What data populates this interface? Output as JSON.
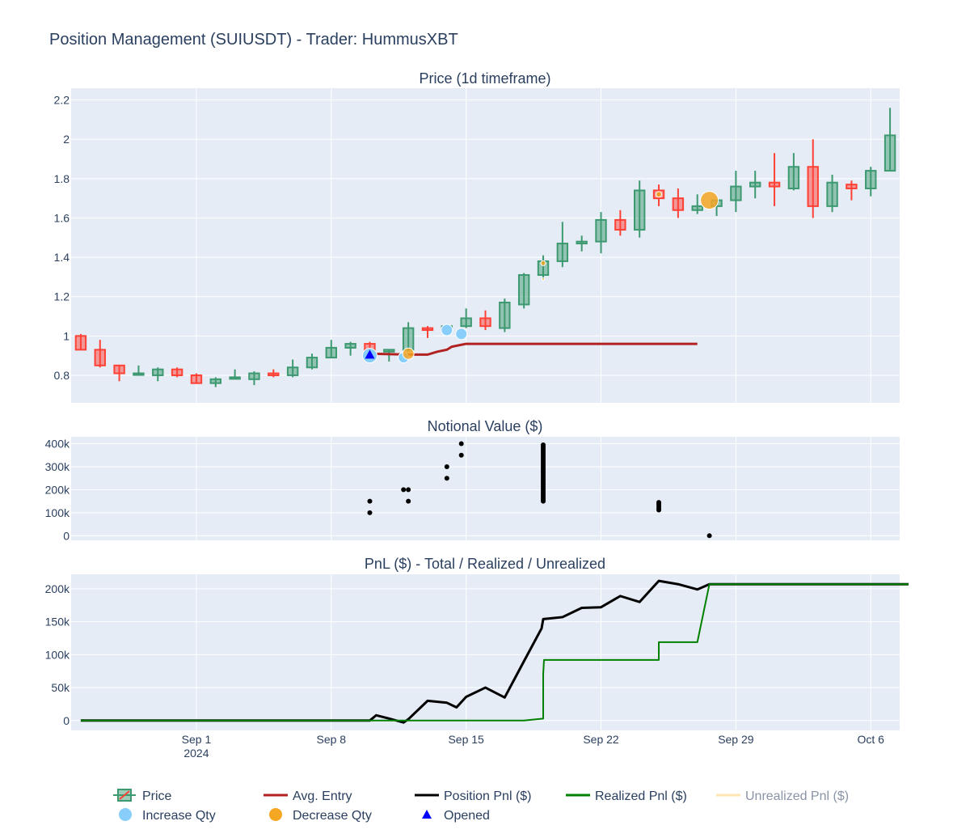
{
  "title": "Position Management (SUIUSDT) - Trader: HummusXBT",
  "colors": {
    "plot_bg": "#e5ecf6",
    "grid": "#ffffff",
    "text": "#2a3f5f",
    "up": "#3d9970",
    "up_fill": "rgba(61,153,112,0.5)",
    "down": "#ff4136",
    "down_fill": "rgba(255,65,54,0.5)",
    "avg_entry": "#b22222",
    "increase": "#87cefa",
    "decrease": "#f5a623",
    "opened": "#0000ff",
    "position_pnl": "#000000",
    "realized_pnl": "#008000",
    "unrealized_pnl": "#ffd580"
  },
  "x_axis": {
    "start": "2024-08-26",
    "end": "2024-10-07",
    "ticks": [
      {
        "date": "2024-09-01",
        "label": "Sep 1",
        "sublabel": "2024"
      },
      {
        "date": "2024-09-08",
        "label": "Sep 8",
        "sublabel": ""
      },
      {
        "date": "2024-09-15",
        "label": "Sep 15",
        "sublabel": ""
      },
      {
        "date": "2024-09-22",
        "label": "Sep 22",
        "sublabel": ""
      },
      {
        "date": "2024-09-29",
        "label": "Sep 29",
        "sublabel": ""
      },
      {
        "date": "2024-10-06",
        "label": "Oct 6",
        "sublabel": ""
      }
    ]
  },
  "chart_data": [
    {
      "type": "candlestick",
      "title": "Price (1d timeframe)",
      "ylim": [
        0.66,
        2.26
      ],
      "yticks": [
        {
          "v": 0.8,
          "label": "0.8"
        },
        {
          "v": 1.0,
          "label": "1"
        },
        {
          "v": 1.2,
          "label": "1.2"
        },
        {
          "v": 1.4,
          "label": "1.4"
        },
        {
          "v": 1.6,
          "label": "1.6"
        },
        {
          "v": 1.8,
          "label": "1.8"
        },
        {
          "v": 2.0,
          "label": "2"
        },
        {
          "v": 2.2,
          "label": "2.2"
        }
      ],
      "candles": [
        {
          "d": "2024-08-26",
          "o": 1.0,
          "h": 1.01,
          "l": 0.93,
          "c": 0.93
        },
        {
          "d": "2024-08-27",
          "o": 0.93,
          "h": 0.98,
          "l": 0.84,
          "c": 0.85
        },
        {
          "d": "2024-08-28",
          "o": 0.85,
          "h": 0.85,
          "l": 0.77,
          "c": 0.81
        },
        {
          "d": "2024-08-29",
          "o": 0.81,
          "h": 0.85,
          "l": 0.8,
          "c": 0.81
        },
        {
          "d": "2024-08-30",
          "o": 0.8,
          "h": 0.84,
          "l": 0.77,
          "c": 0.83
        },
        {
          "d": "2024-08-31",
          "o": 0.83,
          "h": 0.84,
          "l": 0.79,
          "c": 0.8
        },
        {
          "d": "2024-09-01",
          "o": 0.8,
          "h": 0.81,
          "l": 0.76,
          "c": 0.76
        },
        {
          "d": "2024-09-02",
          "o": 0.76,
          "h": 0.79,
          "l": 0.74,
          "c": 0.78
        },
        {
          "d": "2024-09-03",
          "o": 0.79,
          "h": 0.83,
          "l": 0.78,
          "c": 0.79
        },
        {
          "d": "2024-09-04",
          "o": 0.78,
          "h": 0.82,
          "l": 0.75,
          "c": 0.81
        },
        {
          "d": "2024-09-05",
          "o": 0.81,
          "h": 0.83,
          "l": 0.79,
          "c": 0.8
        },
        {
          "d": "2024-09-06",
          "o": 0.8,
          "h": 0.88,
          "l": 0.79,
          "c": 0.84
        },
        {
          "d": "2024-09-07",
          "o": 0.84,
          "h": 0.91,
          "l": 0.83,
          "c": 0.89
        },
        {
          "d": "2024-09-08",
          "o": 0.89,
          "h": 0.98,
          "l": 0.89,
          "c": 0.94
        },
        {
          "d": "2024-09-09",
          "o": 0.94,
          "h": 0.97,
          "l": 0.9,
          "c": 0.96
        },
        {
          "d": "2024-09-10",
          "o": 0.96,
          "h": 0.97,
          "l": 0.91,
          "c": 0.92
        },
        {
          "d": "2024-09-11",
          "o": 0.92,
          "h": 0.93,
          "l": 0.87,
          "c": 0.93
        },
        {
          "d": "2024-09-12",
          "o": 0.93,
          "h": 1.07,
          "l": 0.92,
          "c": 1.04
        },
        {
          "d": "2024-09-13",
          "o": 1.04,
          "h": 1.05,
          "l": 0.99,
          "c": 1.03
        },
        {
          "d": "2024-09-14",
          "o": 1.03,
          "h": 1.06,
          "l": 1.02,
          "c": 1.05
        },
        {
          "d": "2024-09-15",
          "o": 1.05,
          "h": 1.14,
          "l": 1.04,
          "c": 1.09
        },
        {
          "d": "2024-09-16",
          "o": 1.09,
          "h": 1.13,
          "l": 1.03,
          "c": 1.05
        },
        {
          "d": "2024-09-17",
          "o": 1.04,
          "h": 1.19,
          "l": 1.02,
          "c": 1.17
        },
        {
          "d": "2024-09-18",
          "o": 1.16,
          "h": 1.32,
          "l": 1.14,
          "c": 1.31
        },
        {
          "d": "2024-09-19",
          "o": 1.31,
          "h": 1.41,
          "l": 1.29,
          "c": 1.38
        },
        {
          "d": "2024-09-20",
          "o": 1.38,
          "h": 1.58,
          "l": 1.35,
          "c": 1.47
        },
        {
          "d": "2024-09-21",
          "o": 1.47,
          "h": 1.51,
          "l": 1.43,
          "c": 1.48
        },
        {
          "d": "2024-09-22",
          "o": 1.48,
          "h": 1.63,
          "l": 1.42,
          "c": 1.59
        },
        {
          "d": "2024-09-23",
          "o": 1.59,
          "h": 1.64,
          "l": 1.51,
          "c": 1.54
        },
        {
          "d": "2024-09-24",
          "o": 1.54,
          "h": 1.79,
          "l": 1.5,
          "c": 1.74
        },
        {
          "d": "2024-09-25",
          "o": 1.74,
          "h": 1.77,
          "l": 1.66,
          "c": 1.7
        },
        {
          "d": "2024-09-26",
          "o": 1.7,
          "h": 1.75,
          "l": 1.6,
          "c": 1.64
        },
        {
          "d": "2024-09-27",
          "o": 1.64,
          "h": 1.72,
          "l": 1.62,
          "c": 1.66
        },
        {
          "d": "2024-09-28",
          "o": 1.66,
          "h": 1.69,
          "l": 1.61,
          "c": 1.69
        },
        {
          "d": "2024-09-29",
          "o": 1.69,
          "h": 1.84,
          "l": 1.63,
          "c": 1.76
        },
        {
          "d": "2024-09-30",
          "o": 1.76,
          "h": 1.84,
          "l": 1.7,
          "c": 1.78
        },
        {
          "d": "2024-10-01",
          "o": 1.78,
          "h": 1.93,
          "l": 1.66,
          "c": 1.76
        },
        {
          "d": "2024-10-02",
          "o": 1.75,
          "h": 1.93,
          "l": 1.74,
          "c": 1.86
        },
        {
          "d": "2024-10-03",
          "o": 1.86,
          "h": 2.0,
          "l": 1.6,
          "c": 1.66
        },
        {
          "d": "2024-10-04",
          "o": 1.66,
          "h": 1.82,
          "l": 1.63,
          "c": 1.78
        },
        {
          "d": "2024-10-05",
          "o": 1.77,
          "h": 1.79,
          "l": 1.69,
          "c": 1.75
        },
        {
          "d": "2024-10-06",
          "o": 1.75,
          "h": 1.86,
          "l": 1.71,
          "c": 1.84
        },
        {
          "d": "2024-10-07",
          "o": 1.84,
          "h": 2.16,
          "l": 1.84,
          "c": 2.02
        }
      ],
      "avg_entry": [
        {
          "x": "2024-09-10 00:00",
          "y": 0.91
        },
        {
          "x": "2024-09-12 00:00",
          "y": 0.905
        },
        {
          "x": "2024-09-13 00:00",
          "y": 0.905
        },
        {
          "x": "2024-09-13 12:00",
          "y": 0.92
        },
        {
          "x": "2024-09-14 00:00",
          "y": 0.93
        },
        {
          "x": "2024-09-14 06:00",
          "y": 0.945
        },
        {
          "x": "2024-09-14 18:00",
          "y": 0.955
        },
        {
          "x": "2024-09-15 00:00",
          "y": 0.96
        },
        {
          "x": "2024-09-27 00:00",
          "y": 0.96
        }
      ],
      "increase_qty": [
        {
          "x": "2024-09-10 00:00",
          "y": 0.9,
          "size": 18
        },
        {
          "x": "2024-09-11 18:00",
          "y": 0.89,
          "size": 13
        },
        {
          "x": "2024-09-14 00:00",
          "y": 1.03,
          "size": 14
        },
        {
          "x": "2024-09-14 18:00",
          "y": 1.01,
          "size": 14
        }
      ],
      "decrease_qty": [
        {
          "x": "2024-09-12 00:00",
          "y": 0.91,
          "size": 14
        },
        {
          "x": "2024-09-19 00:00",
          "y": 1.37,
          "size": 6
        },
        {
          "x": "2024-09-19 00:00",
          "y": 1.29,
          "size": 3
        },
        {
          "x": "2024-09-25 00:00",
          "y": 1.72,
          "size": 7
        },
        {
          "x": "2024-09-27 15:00",
          "y": 1.69,
          "size": 22
        }
      ],
      "opened": [
        {
          "x": "2024-09-10 00:00",
          "y": 0.905
        }
      ]
    },
    {
      "type": "scatter",
      "title": "Notional Value ($)",
      "ylim": [
        -20000,
        430000
      ],
      "yticks": [
        {
          "v": 0,
          "label": "0"
        },
        {
          "v": 100000,
          "label": "100k"
        },
        {
          "v": 200000,
          "label": "200k"
        },
        {
          "v": 300000,
          "label": "300k"
        },
        {
          "v": 400000,
          "label": "400k"
        }
      ],
      "points": [
        {
          "x": "2024-09-10 00:00",
          "y": 100000
        },
        {
          "x": "2024-09-10 00:00",
          "y": 150000
        },
        {
          "x": "2024-09-11 18:00",
          "y": 200000
        },
        {
          "x": "2024-09-12 00:00",
          "y": 150000
        },
        {
          "x": "2024-09-12 00:00",
          "y": 200000
        },
        {
          "x": "2024-09-14 00:00",
          "y": 250000
        },
        {
          "x": "2024-09-14 00:00",
          "y": 300000
        },
        {
          "x": "2024-09-14 18:00",
          "y": 350000
        },
        {
          "x": "2024-09-14 18:00",
          "y": 400000
        },
        {
          "x": "2024-09-27 15:00",
          "y": 0
        }
      ],
      "clusters": [
        {
          "x": "2024-09-19 00:00",
          "from": 150000,
          "to": 395000
        },
        {
          "x": "2024-09-25 00:00",
          "from": 112000,
          "to": 145000
        }
      ]
    },
    {
      "type": "line",
      "title": "PnL ($) - Total / Realized / Unrealized",
      "ylim": [
        -15000,
        222000
      ],
      "yticks": [
        {
          "v": 0,
          "label": "0"
        },
        {
          "v": 50000,
          "label": "50k"
        },
        {
          "v": 100000,
          "label": "100k"
        },
        {
          "v": 150000,
          "label": "150k"
        },
        {
          "v": 200000,
          "label": "200k"
        }
      ],
      "series": [
        {
          "name": "Position Pnl ($)",
          "points": [
            [
              "2024-08-26 00:00",
              0
            ],
            [
              "2024-09-10 00:00",
              0
            ],
            [
              "2024-09-10 08:00",
              8000
            ],
            [
              "2024-09-11 00:00",
              3000
            ],
            [
              "2024-09-11 18:00",
              -3000
            ],
            [
              "2024-09-12 00:00",
              2000
            ],
            [
              "2024-09-13 00:00",
              30000
            ],
            [
              "2024-09-14 00:00",
              27000
            ],
            [
              "2024-09-14 12:00",
              20000
            ],
            [
              "2024-09-15 00:00",
              36000
            ],
            [
              "2024-09-16 00:00",
              50000
            ],
            [
              "2024-09-17 00:00",
              35000
            ],
            [
              "2024-09-18 00:00",
              90000
            ],
            [
              "2024-09-18 22:00",
              140000
            ],
            [
              "2024-09-19 00:00",
              154000
            ],
            [
              "2024-09-20 00:00",
              157000
            ],
            [
              "2024-09-21 00:00",
              171000
            ],
            [
              "2024-09-22 00:00",
              172000
            ],
            [
              "2024-09-23 00:00",
              189000
            ],
            [
              "2024-09-24 00:00",
              180000
            ],
            [
              "2024-09-25 00:00",
              212000
            ],
            [
              "2024-09-26 00:00",
              207000
            ],
            [
              "2024-09-27 00:00",
              199000
            ],
            [
              "2024-09-27 15:00",
              207000
            ],
            [
              "2024-10-07 23:00",
              207000
            ]
          ]
        },
        {
          "name": "Realized Pnl ($)",
          "points": [
            [
              "2024-08-26 00:00",
              0
            ],
            [
              "2024-09-18 00:00",
              0
            ],
            [
              "2024-09-19 00:00",
              3000
            ],
            [
              "2024-09-19 00:00",
              70000
            ],
            [
              "2024-09-19 01:00",
              92000
            ],
            [
              "2024-09-25 00:00",
              92000
            ],
            [
              "2024-09-25 00:00",
              119000
            ],
            [
              "2024-09-27 00:00",
              119000
            ],
            [
              "2024-09-27 15:00",
              207000
            ],
            [
              "2024-10-07 23:00",
              207000
            ]
          ]
        },
        {
          "name": "Unrealized Pnl ($)",
          "points": []
        }
      ]
    }
  ],
  "legend": [
    {
      "name": "Price",
      "icon": "candle-icon",
      "color": "#3d9970",
      "off": false
    },
    {
      "name": "Avg. Entry",
      "icon": "line-icon",
      "color": "#b22222",
      "off": false
    },
    {
      "name": "Position Pnl ($)",
      "icon": "line-icon",
      "color": "#000000",
      "off": false
    },
    {
      "name": "Realized Pnl ($)",
      "icon": "line-icon",
      "color": "#008000",
      "off": false
    },
    {
      "name": "Unrealized Pnl ($)",
      "icon": "line-icon",
      "color": "#ffd580",
      "off": true
    },
    {
      "name": "Increase Qty",
      "icon": "circle-icon",
      "color": "#87cefa",
      "off": false
    },
    {
      "name": "Decrease Qty",
      "icon": "circle-icon",
      "color": "#f5a623",
      "off": false
    },
    {
      "name": "Opened",
      "icon": "triangle-icon",
      "color": "#0000ff",
      "off": false
    }
  ]
}
